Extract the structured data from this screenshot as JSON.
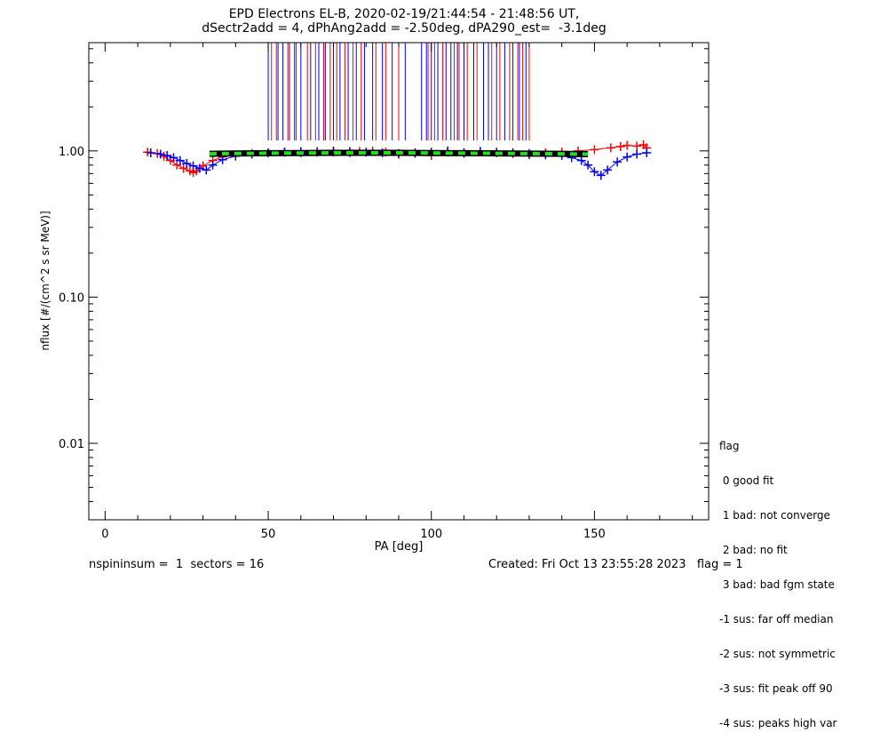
{
  "chart_data": {
    "type": "scatter",
    "title_line1": "EPD Electrons EL-B, 2020-02-19/21:44:54 - 21:48:56 UT,",
    "title_line2": "dSectr2add = 4, dPhAng2add = -2.50deg, dPA290_est=  -3.1deg",
    "xlabel": "PA [deg]",
    "ylabel": "nflux [#/(cm^2 s sr MeV)]",
    "x_ticks": [
      "0",
      "50",
      "100",
      "150"
    ],
    "x_tick_values": [
      0,
      50,
      100,
      150
    ],
    "y_ticks": [
      "1.00",
      "0.10",
      "0.01"
    ],
    "y_tick_values": [
      1.0,
      0.1,
      0.01
    ],
    "xlim": [
      -5,
      185
    ],
    "ylim": [
      0.003,
      5.5
    ],
    "y_scale": "log",
    "grid": false,
    "series": [
      {
        "color": "#ff0000",
        "marker": "plus",
        "x": [
          13,
          16,
          18,
          20,
          22,
          24,
          26,
          27,
          28,
          30,
          33,
          36,
          40,
          45,
          50,
          55,
          60,
          65,
          70,
          75,
          78,
          82,
          86,
          90,
          95,
          100,
          105,
          110,
          115,
          120,
          125,
          130,
          135,
          140,
          145,
          150,
          155,
          158,
          160,
          163,
          165,
          166
        ],
        "y": [
          0.98,
          0.96,
          0.92,
          0.86,
          0.8,
          0.76,
          0.73,
          0.71,
          0.73,
          0.79,
          0.86,
          0.91,
          0.94,
          0.96,
          0.97,
          0.98,
          0.97,
          0.99,
          0.98,
          0.97,
          0.99,
          1.0,
          0.98,
          0.95,
          0.96,
          0.93,
          0.98,
          0.96,
          0.99,
          0.97,
          0.96,
          0.94,
          0.97,
          0.98,
          1.0,
          1.02,
          1.05,
          1.07,
          1.09,
          1.08,
          1.1,
          1.05
        ]
      },
      {
        "color": "#0000ff",
        "marker": "plus",
        "x": [
          14,
          17,
          19,
          21,
          23,
          25,
          27,
          29,
          31,
          33,
          36,
          40,
          45,
          50,
          55,
          60,
          65,
          70,
          75,
          80,
          85,
          90,
          95,
          100,
          105,
          110,
          115,
          120,
          125,
          130,
          135,
          140,
          143,
          146,
          148,
          150,
          152,
          154,
          157,
          160,
          163,
          166
        ],
        "y": [
          0.97,
          0.95,
          0.93,
          0.9,
          0.86,
          0.82,
          0.79,
          0.76,
          0.74,
          0.8,
          0.87,
          0.92,
          0.95,
          0.97,
          0.98,
          0.99,
          0.98,
          1.0,
          0.99,
          0.98,
          0.97,
          0.96,
          0.97,
          0.98,
          1.0,
          0.97,
          0.99,
          0.98,
          0.97,
          0.96,
          0.94,
          0.93,
          0.9,
          0.86,
          0.8,
          0.72,
          0.68,
          0.74,
          0.84,
          0.91,
          0.95,
          0.97
        ]
      },
      {
        "color": "#22dd22",
        "style": "dashed-fit",
        "x": [
          32,
          40,
          50,
          60,
          70,
          80,
          90,
          100,
          110,
          120,
          130,
          140,
          148
        ],
        "y": [
          0.955,
          0.96,
          0.965,
          0.968,
          0.97,
          0.97,
          0.97,
          0.968,
          0.965,
          0.962,
          0.958,
          0.955,
          0.95
        ]
      }
    ],
    "red_vertical_lines_x": [
      51,
      52.5,
      56,
      58,
      62,
      64.5,
      67,
      69,
      71,
      73.5,
      76,
      78.5,
      83,
      86,
      90,
      99,
      101,
      103.5,
      107,
      108.5,
      111,
      114,
      118.5,
      121,
      124,
      126.5,
      128,
      130
    ],
    "blue_vertical_lines_x": [
      50,
      53,
      54.5,
      56.5,
      58.5,
      60,
      63,
      65.5,
      67.5,
      70,
      72,
      74.5,
      77,
      79.5,
      82,
      85,
      88,
      92,
      97,
      98.5,
      100,
      102,
      104.5,
      106,
      108,
      110,
      113,
      116,
      117.5,
      120,
      122.5,
      125,
      127,
      129
    ],
    "vertical_lines_ymin": 1.18,
    "vertical_lines_ymax": 5.5
  },
  "legend": {
    "title": "flag",
    "items": [
      " 0 good fit",
      " 1 bad: not converge",
      " 2 bad: no fit",
      " 3 bad: bad fgm state",
      "-1 sus: far off median",
      "-2 sus: not symmetric",
      "-3 sus: fit peak off 90",
      "-4 sus: peaks high var"
    ]
  },
  "footer": {
    "left": "nspininsum =  1  sectors = 16",
    "right": "Created: Fri Oct 13 23:55:28 2023   flag = 1"
  }
}
